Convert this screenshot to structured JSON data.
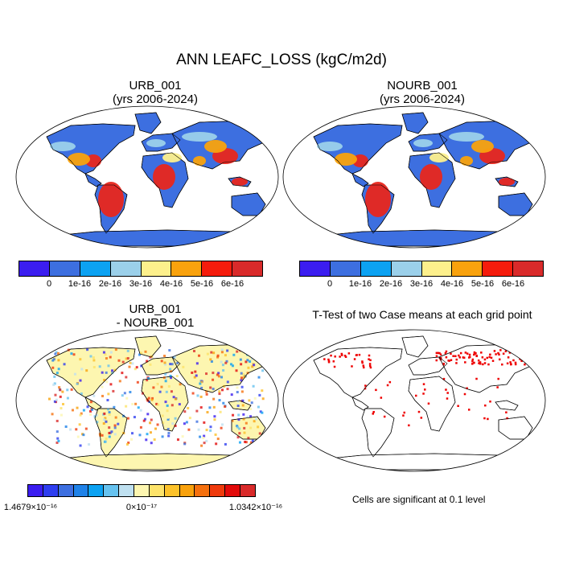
{
  "main_title": "ANN LEAFC_LOSS (kgC/m2d)",
  "panels": {
    "top_left": {
      "title_line1": "URB_001",
      "title_line2": "(yrs 2006-2024)"
    },
    "top_right": {
      "title_line1": "NOURB_001",
      "title_line2": "(yrs 2006-2024)"
    },
    "bottom_left": {
      "title_line1": "URB_001",
      "title_line2": "- NOURB_001"
    },
    "bottom_right": {
      "title_line1": "T-Test of two Case means at each grid point",
      "note": "Cells are significant at 0.1 level"
    }
  },
  "colorbar_abs": {
    "colors": [
      "#3b1df0",
      "#3d6fe0",
      "#0ca2f2",
      "#9bd0ea",
      "#fdf08c",
      "#f9a20d",
      "#f51c0c",
      "#d92a2a"
    ],
    "tick_labels": [
      "0",
      "1e-16",
      "2e-16",
      "3e-16",
      "4e-16",
      "5e-16",
      "6e-16"
    ]
  },
  "colorbar_diff": {
    "colors": [
      "#3b1df0",
      "#2e3ef0",
      "#3d6fe0",
      "#1f82e8",
      "#0ca2f2",
      "#66c2ef",
      "#bfe0f0",
      "#fdf6b0",
      "#fde36a",
      "#fcc22a",
      "#f9a20d",
      "#f5700e",
      "#ef3a0c",
      "#e20a0a",
      "#d92a2a"
    ],
    "label_left": "1.4679×10⁻¹⁶",
    "label_center": "0×10⁻¹⁷",
    "label_right": "1.0342×10⁻¹⁶"
  },
  "map_colors": {
    "ocean": "#ffffff",
    "low": "#3d6fe0",
    "mid": "#9bd0ea",
    "yellow": "#fdf08c",
    "orange": "#f9a20d",
    "red": "#e8261c",
    "diff_base": "#fdf6b0",
    "sig": "#ee0000"
  }
}
